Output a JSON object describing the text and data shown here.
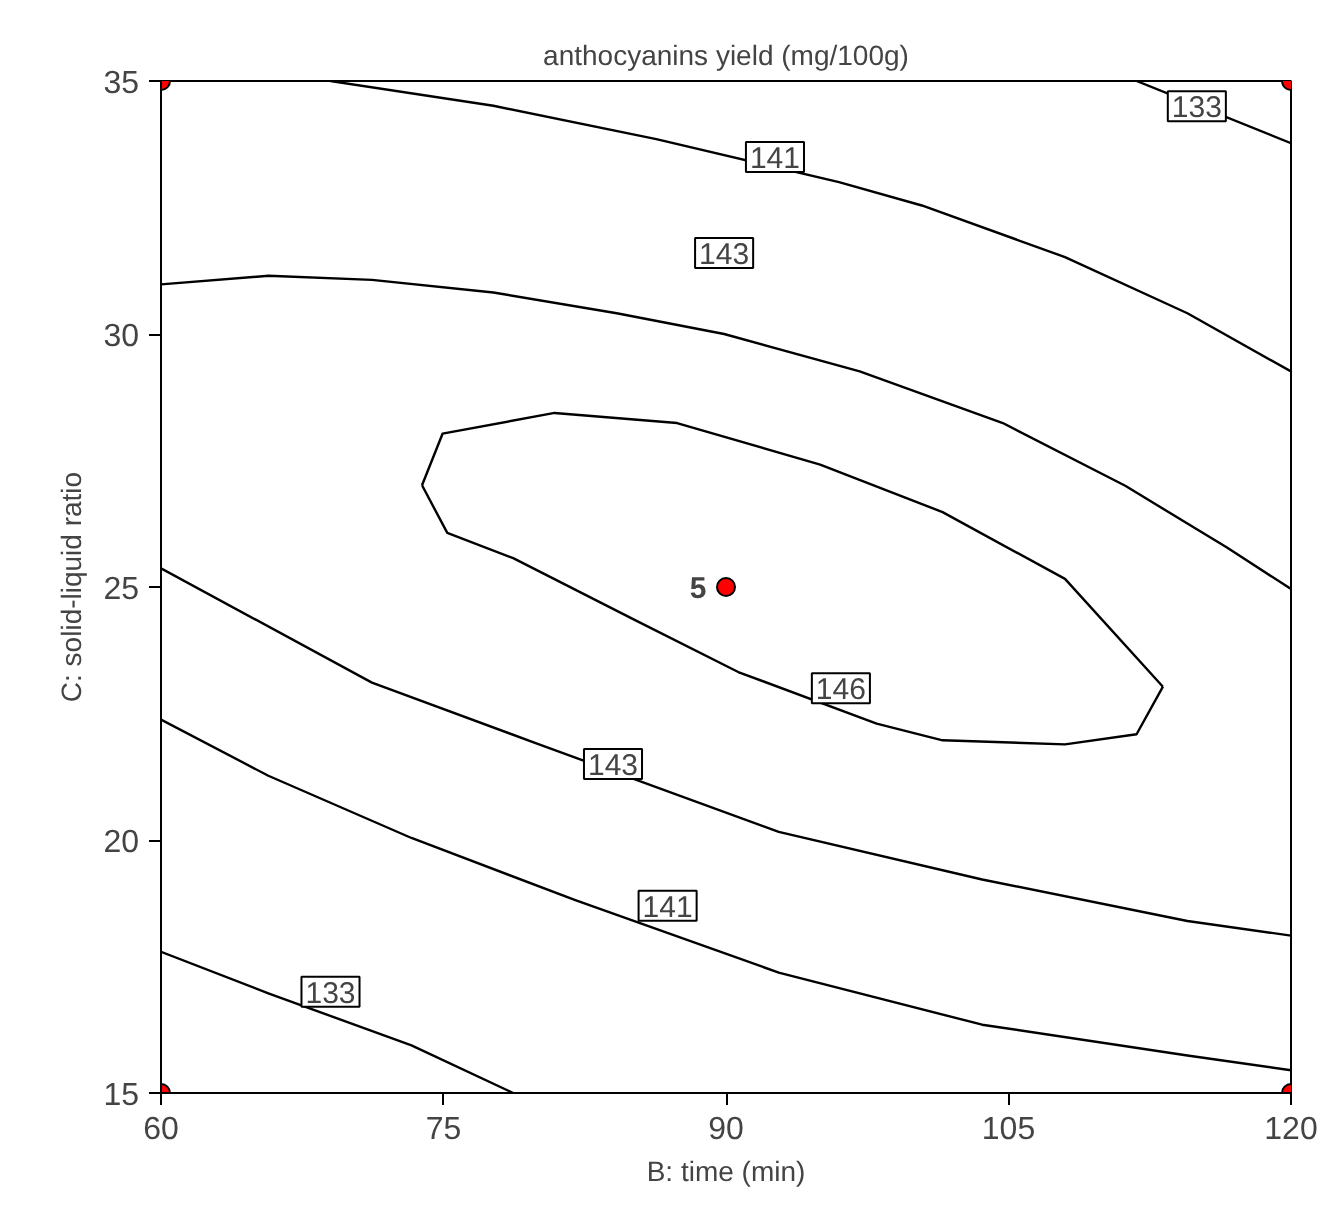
{
  "chart_data": {
    "type": "line",
    "title": "anthocyanins yield (mg/100g)",
    "xlabel": "B: time (min)",
    "ylabel": "C: solid-liquid ratio",
    "xlim": [
      60,
      120
    ],
    "ylim": [
      15,
      35
    ],
    "xticks": [
      60,
      75,
      90,
      105,
      120
    ],
    "yticks": [
      15,
      20,
      25,
      30,
      35
    ],
    "grid": false,
    "marker": "none",
    "line_style": "solid",
    "series": [
      {
        "color": "#000000",
        "x": [
          111.8,
          120
        ],
        "values": [
          35,
          33.77
        ]
      },
      {
        "color": "#000000",
        "x": [
          69.0,
          77.65,
          86.3,
          96.0,
          100.4,
          108.0,
          114.5,
          120
        ],
        "values": [
          35,
          34.51,
          33.85,
          33.0,
          32.54,
          31.52,
          30.41,
          29.26
        ]
      },
      {
        "color": "#000000",
        "x": [
          60,
          65.7,
          71.2,
          77.65,
          84.2,
          89.9,
          97.1,
          104.7,
          111.2,
          116.6,
          120
        ],
        "values": [
          30.98,
          31.15,
          31.07,
          30.82,
          30.41,
          30.0,
          29.26,
          28.24,
          27.0,
          25.78,
          24.96
        ]
      },
      {
        "color": "#000000",
        "x": [
          73.86,
          74.95,
          80.9,
          87.4,
          95.0,
          101.5,
          108.0,
          113.2
        ],
        "values": [
          27.01,
          28.03,
          28.44,
          28.24,
          27.42,
          26.48,
          25.16,
          23.03
        ]
      },
      {
        "color": "#000000",
        "x": [
          73.86,
          75.2,
          78.7,
          85.2,
          90.65,
          98.0,
          101.5,
          108.0,
          111.8,
          113.2
        ],
        "values": [
          27.01,
          26.07,
          25.57,
          24.34,
          23.32,
          22.3,
          21.97,
          21.89,
          22.09,
          23.03
        ]
      },
      {
        "color": "#000000",
        "x": [
          60,
          71.2,
          80.0,
          92.8,
          103.6,
          114.5,
          120
        ],
        "values": [
          25.37,
          23.11,
          21.9,
          20.16,
          19.22,
          18.4,
          18.11
        ]
      },
      {
        "color": "#000000",
        "x": [
          60,
          65.7,
          73.3,
          82.0,
          92.8,
          103.6,
          114.5,
          120
        ],
        "values": [
          22.38,
          21.27,
          20.04,
          18.81,
          17.38,
          16.35,
          15.74,
          15.45
        ]
      },
      {
        "color": "#000000",
        "x": [
          60,
          65.7,
          73.3,
          78.7
        ],
        "values": [
          17.79,
          16.97,
          15.94,
          15
        ]
      },
      {
        "type": "scatter",
        "marker": "circle",
        "color": "#ff0000",
        "x": [
          60,
          60,
          120,
          120
        ],
        "values": [
          15,
          35,
          15,
          35
        ]
      },
      {
        "type": "scatter",
        "marker": "circle",
        "name": "5",
        "color": "#ff0000",
        "x": [
          90
        ],
        "values": [
          25
        ]
      }
    ],
    "annotations": [
      {
        "text": "133",
        "x": 115.0,
        "y": 34.5
      },
      {
        "text": "141",
        "x": 92.6,
        "y": 33.5
      },
      {
        "text": "143",
        "x": 89.9,
        "y": 31.6
      },
      {
        "text": "146",
        "x": 96.1,
        "y": 23.0
      },
      {
        "text": "143",
        "x": 84.0,
        "y": 21.5
      },
      {
        "text": "141",
        "x": 86.9,
        "y": 18.7
      },
      {
        "text": "133",
        "x": 69.0,
        "y": 17.0
      }
    ]
  }
}
